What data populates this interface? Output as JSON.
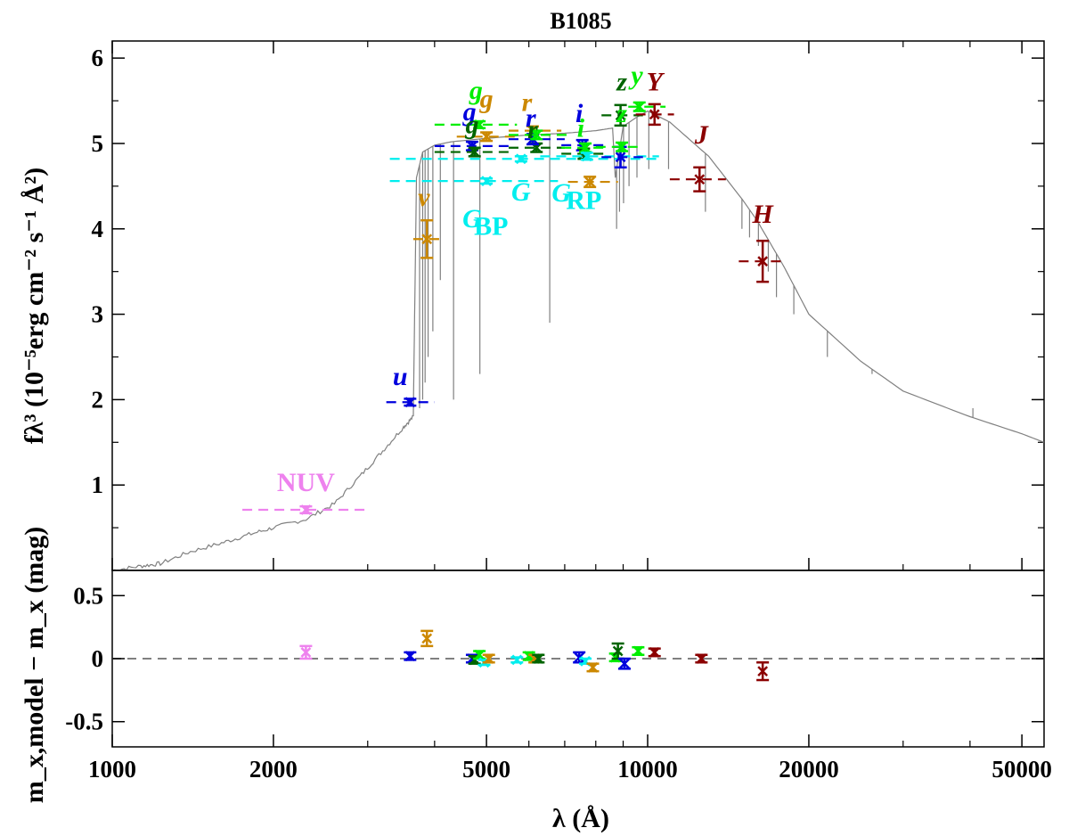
{
  "chart_data": {
    "type": "scatter",
    "title": "B1085",
    "xlabel": "λ (Å)",
    "x_scale": "log",
    "xlim": [
      1000,
      55000
    ],
    "xticks": [
      1000,
      2000,
      5000,
      10000,
      20000,
      50000
    ],
    "xminor_ticks": [
      3000,
      4000,
      6000,
      7000,
      8000,
      9000,
      30000,
      40000
    ],
    "top_panel": {
      "ylabel": "fλ³ (10⁻⁵erg cm⁻² s⁻¹ Å²)",
      "ylim": [
        0,
        6.2
      ],
      "yticks": [
        1,
        2,
        3,
        4,
        5,
        6
      ],
      "model_spectrum": {
        "color": "#808080",
        "continuum": [
          [
            1000,
            0.0
          ],
          [
            1130,
            0.05
          ],
          [
            1230,
            0.08
          ],
          [
            1400,
            0.22
          ],
          [
            1600,
            0.32
          ],
          [
            1800,
            0.42
          ],
          [
            2000,
            0.5
          ],
          [
            2300,
            0.6
          ],
          [
            2600,
            0.78
          ],
          [
            2900,
            1.1
          ],
          [
            3200,
            1.4
          ],
          [
            3500,
            1.68
          ],
          [
            3650,
            1.8
          ],
          [
            3700,
            4.6
          ],
          [
            3800,
            4.9
          ],
          [
            4000,
            4.98
          ],
          [
            4300,
            5.02
          ],
          [
            5000,
            5.06
          ],
          [
            6000,
            5.1
          ],
          [
            7000,
            5.12
          ],
          [
            8000,
            5.15
          ],
          [
            8600,
            5.18
          ],
          [
            8700,
            4.6
          ],
          [
            9000,
            5.2
          ],
          [
            9500,
            5.3
          ],
          [
            10000,
            5.38
          ],
          [
            11000,
            5.25
          ],
          [
            13000,
            4.85
          ],
          [
            15000,
            4.35
          ],
          [
            16000,
            4.1
          ],
          [
            18000,
            3.55
          ],
          [
            20000,
            3.0
          ],
          [
            25000,
            2.45
          ],
          [
            30000,
            2.1
          ],
          [
            40000,
            1.8
          ],
          [
            50000,
            1.6
          ],
          [
            55000,
            1.5
          ]
        ],
        "lines": [
          [
            3750,
            1.9
          ],
          [
            3800,
            2.0
          ],
          [
            3840,
            2.2
          ],
          [
            3890,
            2.5
          ],
          [
            3970,
            2.8
          ],
          [
            4100,
            3.4
          ],
          [
            4340,
            2.0
          ],
          [
            4860,
            2.3
          ],
          [
            6563,
            2.9
          ],
          [
            8750,
            4.0
          ],
          [
            8860,
            4.2
          ],
          [
            9015,
            4.3
          ],
          [
            9230,
            4.5
          ],
          [
            9550,
            4.6
          ],
          [
            10050,
            4.7
          ],
          [
            10940,
            4.7
          ],
          [
            12820,
            4.2
          ],
          [
            15000,
            4.0
          ],
          [
            15500,
            3.9
          ],
          [
            16100,
            3.8
          ],
          [
            16800,
            3.5
          ],
          [
            17400,
            3.2
          ],
          [
            18750,
            3.0
          ],
          [
            21660,
            2.5
          ],
          [
            26250,
            2.3
          ],
          [
            40500,
            1.9
          ]
        ]
      },
      "photometry": [
        {
          "band": "NUV",
          "color": "#ee82ee",
          "x": 2300,
          "y": 0.71,
          "yerr": 0.04,
          "x_lo": 1750,
          "x_hi": 3000
        },
        {
          "band": "u",
          "color": "#0000dd",
          "x": 3600,
          "y": 1.97,
          "yerr": 0.04,
          "x_lo": 3250,
          "x_hi": 4000
        },
        {
          "band": "v",
          "color": "#cc8800",
          "x": 3870,
          "y": 3.88,
          "yerr": 0.22,
          "x_lo": 3650,
          "x_hi": 4150
        },
        {
          "band": "g",
          "color": "#0000dd",
          "x": 4700,
          "y": 4.97,
          "yerr": 0.05,
          "x_lo": 4000,
          "x_hi": 5500
        },
        {
          "band": "g",
          "color": "#006400",
          "x": 4750,
          "y": 4.9,
          "yerr": 0.05,
          "x_lo": 4000,
          "x_hi": 5500
        },
        {
          "band": "g",
          "color": "#00ee00",
          "x": 4850,
          "y": 5.22,
          "yerr": 0.04,
          "x_lo": 4000,
          "x_hi": 5700
        },
        {
          "band": "g",
          "color": "#cc8800",
          "x": 5000,
          "y": 5.08,
          "yerr": 0.05,
          "x_lo": 4400,
          "x_hi": 5700
        },
        {
          "band": "G_BP",
          "color": "#00eeee",
          "x": 5000,
          "y": 4.56,
          "yerr": 0.03,
          "x_lo": 3300,
          "x_hi": 6800
        },
        {
          "band": "G",
          "color": "#00eeee",
          "x": 5800,
          "y": 4.82,
          "yerr": 0.03,
          "x_lo": 3300,
          "x_hi": 10500
        },
        {
          "band": "r",
          "color": "#cc8800",
          "x": 6100,
          "y": 5.15,
          "yerr": 0.05,
          "x_lo": 5500,
          "x_hi": 6900
        },
        {
          "band": "r",
          "color": "#006400",
          "x": 6200,
          "y": 4.95,
          "yerr": 0.05,
          "x_lo": 5500,
          "x_hi": 7000
        },
        {
          "band": "r",
          "color": "#0000dd",
          "x": 6100,
          "y": 5.05,
          "yerr": 0.06,
          "x_lo": 5500,
          "x_hi": 7000
        },
        {
          "band": "r",
          "color": "#00ee00",
          "x": 6200,
          "y": 5.1,
          "yerr": 0.05,
          "x_lo": 5500,
          "x_hi": 7100
        },
        {
          "band": "i",
          "color": "#0000dd",
          "x": 7550,
          "y": 4.98,
          "yerr": 0.06,
          "x_lo": 6900,
          "x_hi": 8300
        },
        {
          "band": "i",
          "color": "#006400",
          "x": 7600,
          "y": 4.88,
          "yerr": 0.06,
          "x_lo": 6900,
          "x_hi": 8300
        },
        {
          "band": "i",
          "color": "#00ee00",
          "x": 7650,
          "y": 4.95,
          "yerr": 0.05,
          "x_lo": 6900,
          "x_hi": 8300
        },
        {
          "band": "i",
          "color": "#cc8800",
          "x": 7800,
          "y": 4.55,
          "yerr": 0.06,
          "x_lo": 7100,
          "x_hi": 8800
        },
        {
          "band": "G_RP",
          "color": "#00eeee",
          "x": 7700,
          "y": 4.85,
          "yerr": 0.04,
          "x_lo": 6300,
          "x_hi": 10500
        },
        {
          "band": "z",
          "color": "#0000dd",
          "x": 8900,
          "y": 4.84,
          "yerr": 0.12,
          "x_lo": 8200,
          "x_hi": 9800
        },
        {
          "band": "z",
          "color": "#006400",
          "x": 8900,
          "y": 5.33,
          "yerr": 0.12,
          "x_lo": 8200,
          "x_hi": 9800
        },
        {
          "band": "z",
          "color": "#00ee00",
          "x": 8950,
          "y": 4.96,
          "yerr": 0.05,
          "x_lo": 8000,
          "x_hi": 9800
        },
        {
          "band": "y",
          "color": "#00ee00",
          "x": 9650,
          "y": 5.43,
          "yerr": 0.05,
          "x_lo": 9200,
          "x_hi": 10800
        },
        {
          "band": "Y",
          "color": "#8b0000",
          "x": 10300,
          "y": 5.34,
          "yerr": 0.12,
          "x_lo": 9500,
          "x_hi": 11200
        },
        {
          "band": "J",
          "color": "#8b0000",
          "x": 12500,
          "y": 4.58,
          "yerr": 0.14,
          "x_lo": 11000,
          "x_hi": 14000
        },
        {
          "band": "H",
          "color": "#8b0000",
          "x": 16400,
          "y": 3.62,
          "yerr": 0.24,
          "x_lo": 14800,
          "x_hi": 18000
        }
      ],
      "band_labels": [
        {
          "text": "NUV",
          "color": "#ee82ee",
          "x": 2300,
          "y": 0.93,
          "italic": false
        },
        {
          "text": "u",
          "color": "#0000dd",
          "x": 3450,
          "y": 2.17,
          "italic": true
        },
        {
          "text": "v",
          "color": "#cc8800",
          "x": 3820,
          "y": 4.27,
          "italic": true
        },
        {
          "text": "g",
          "color": "#0000dd",
          "x": 4650,
          "y": 5.27,
          "italic": true
        },
        {
          "text": "g",
          "color": "#006400",
          "x": 4700,
          "y": 5.12,
          "italic": true
        },
        {
          "text": "g",
          "color": "#00ee00",
          "x": 4780,
          "y": 5.52,
          "italic": true
        },
        {
          "text": "g",
          "color": "#cc8800",
          "x": 5000,
          "y": 5.42,
          "italic": true
        },
        {
          "text": "G",
          "color": "#00eeee",
          "x": 4700,
          "y": 4.02,
          "italic": true
        },
        {
          "text": "BP",
          "color": "#00eeee",
          "x": 5100,
          "y": 3.93,
          "italic": false
        },
        {
          "text": "G",
          "color": "#00eeee",
          "x": 5800,
          "y": 4.33,
          "italic": true
        },
        {
          "text": "r",
          "color": "#cc8800",
          "x": 5950,
          "y": 5.38,
          "italic": true
        },
        {
          "text": "r",
          "color": "#0000dd",
          "x": 6050,
          "y": 5.2,
          "italic": true
        },
        {
          "text": "r",
          "color": "#006400",
          "x": 6100,
          "y": 5.06,
          "italic": true
        },
        {
          "text": "i",
          "color": "#0000dd",
          "x": 7450,
          "y": 5.25,
          "italic": true
        },
        {
          "text": "i",
          "color": "#00ee00",
          "x": 7500,
          "y": 5.08,
          "italic": true
        },
        {
          "text": "G",
          "color": "#00eeee",
          "x": 6900,
          "y": 4.32,
          "italic": true
        },
        {
          "text": "RP",
          "color": "#00eeee",
          "x": 7600,
          "y": 4.23,
          "italic": false
        },
        {
          "text": "z",
          "color": "#006400",
          "x": 8950,
          "y": 5.62,
          "italic": true
        },
        {
          "text": "z",
          "color": "#00ee00",
          "x": 8950,
          "y": 5.25,
          "italic": true
        },
        {
          "text": "y",
          "color": "#00ee00",
          "x": 9550,
          "y": 5.7,
          "italic": true
        },
        {
          "text": "Y",
          "color": "#8b0000",
          "x": 10300,
          "y": 5.62,
          "italic": true
        },
        {
          "text": "J",
          "color": "#8b0000",
          "x": 12600,
          "y": 5.0,
          "italic": true
        },
        {
          "text": "H",
          "color": "#8b0000",
          "x": 16400,
          "y": 4.07,
          "italic": true
        }
      ]
    },
    "bottom_panel": {
      "ylabel": "m_x,model − m_x (mag)",
      "ylim": [
        -0.7,
        0.7
      ],
      "yticks": [
        0.5,
        0,
        -0.5
      ],
      "ytick_labels": [
        "0.5",
        "0",
        "-0.5"
      ],
      "zero_line_color": "#808080",
      "residuals": [
        {
          "band": "NUV",
          "color": "#ee82ee",
          "x": 2300,
          "y": 0.05,
          "yerr": 0.05
        },
        {
          "band": "u",
          "color": "#0000dd",
          "x": 3600,
          "y": 0.02,
          "yerr": 0.03
        },
        {
          "band": "v",
          "color": "#cc8800",
          "x": 3870,
          "y": 0.16,
          "yerr": 0.06
        },
        {
          "band": "g",
          "color": "#0000dd",
          "x": 4700,
          "y": 0.0,
          "yerr": 0.03
        },
        {
          "band": "g",
          "color": "#006400",
          "x": 4750,
          "y": -0.01,
          "yerr": 0.03
        },
        {
          "band": "g",
          "color": "#00ee00",
          "x": 4850,
          "y": 0.03,
          "yerr": 0.03
        },
        {
          "band": "G_BP",
          "color": "#00eeee",
          "x": 4950,
          "y": -0.03,
          "yerr": 0.02
        },
        {
          "band": "g",
          "color": "#cc8800",
          "x": 5050,
          "y": 0.0,
          "yerr": 0.03
        },
        {
          "band": "G",
          "color": "#00eeee",
          "x": 5700,
          "y": -0.01,
          "yerr": 0.02
        },
        {
          "band": "r",
          "color": "#00ee00",
          "x": 6000,
          "y": 0.02,
          "yerr": 0.03
        },
        {
          "band": "r",
          "color": "#cc8800",
          "x": 6150,
          "y": 0.0,
          "yerr": 0.03
        },
        {
          "band": "r",
          "color": "#006400",
          "x": 6250,
          "y": 0.0,
          "yerr": 0.03
        },
        {
          "band": "i",
          "color": "#0000dd",
          "x": 7450,
          "y": 0.01,
          "yerr": 0.04
        },
        {
          "band": "G_RP",
          "color": "#00eeee",
          "x": 7650,
          "y": -0.02,
          "yerr": 0.02
        },
        {
          "band": "i",
          "color": "#cc8800",
          "x": 7900,
          "y": -0.07,
          "yerr": 0.03
        },
        {
          "band": "i",
          "color": "#00ee00",
          "x": 8700,
          "y": 0.01,
          "yerr": 0.03
        },
        {
          "band": "z",
          "color": "#006400",
          "x": 8800,
          "y": 0.06,
          "yerr": 0.06
        },
        {
          "band": "z",
          "color": "#0000dd",
          "x": 9050,
          "y": -0.04,
          "yerr": 0.04
        },
        {
          "band": "y",
          "color": "#00ee00",
          "x": 9600,
          "y": 0.06,
          "yerr": 0.03
        },
        {
          "band": "Y",
          "color": "#8b0000",
          "x": 10300,
          "y": 0.05,
          "yerr": 0.03
        },
        {
          "band": "J",
          "color": "#8b0000",
          "x": 12600,
          "y": 0.0,
          "yerr": 0.03
        },
        {
          "band": "H",
          "color": "#8b0000",
          "x": 16400,
          "y": -0.1,
          "yerr": 0.07
        }
      ]
    }
  }
}
